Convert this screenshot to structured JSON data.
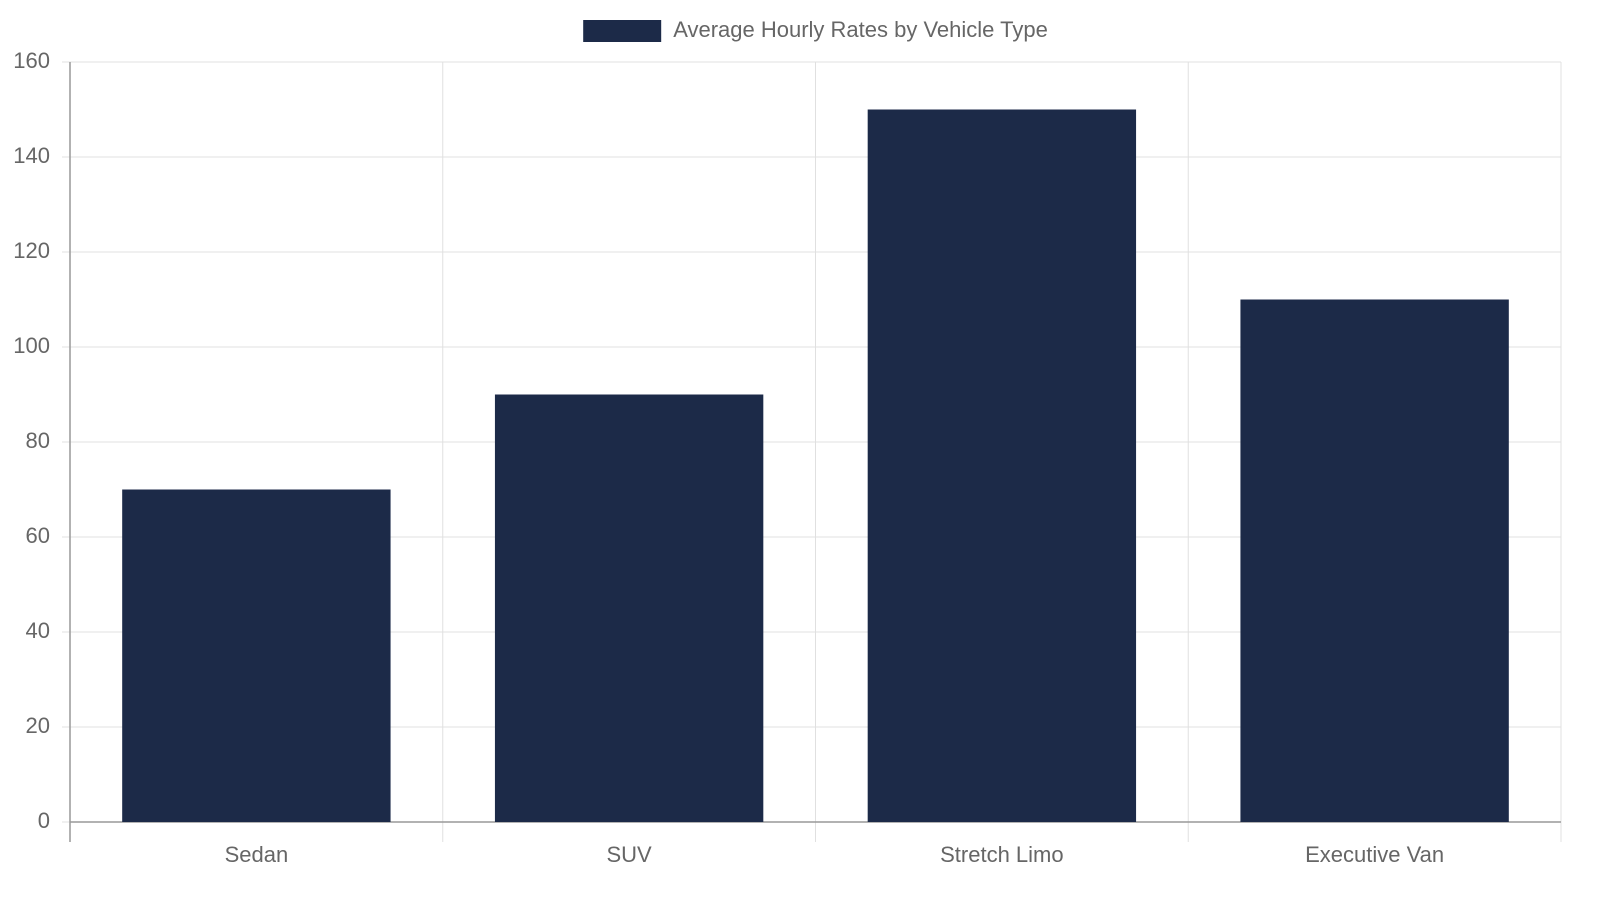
{
  "chart_data": {
    "type": "bar",
    "categories": [
      "Sedan",
      "SUV",
      "Stretch Limo",
      "Executive Van"
    ],
    "series": [
      {
        "name": "Average Hourly Rates by Vehicle Type",
        "color": "#1c2a48",
        "values": [
          70,
          90,
          150,
          110
        ]
      }
    ],
    "ylim": [
      0,
      160
    ],
    "yticks": [
      0,
      20,
      40,
      60,
      80,
      100,
      120,
      140,
      160
    ],
    "grid": true,
    "legend": "top"
  }
}
